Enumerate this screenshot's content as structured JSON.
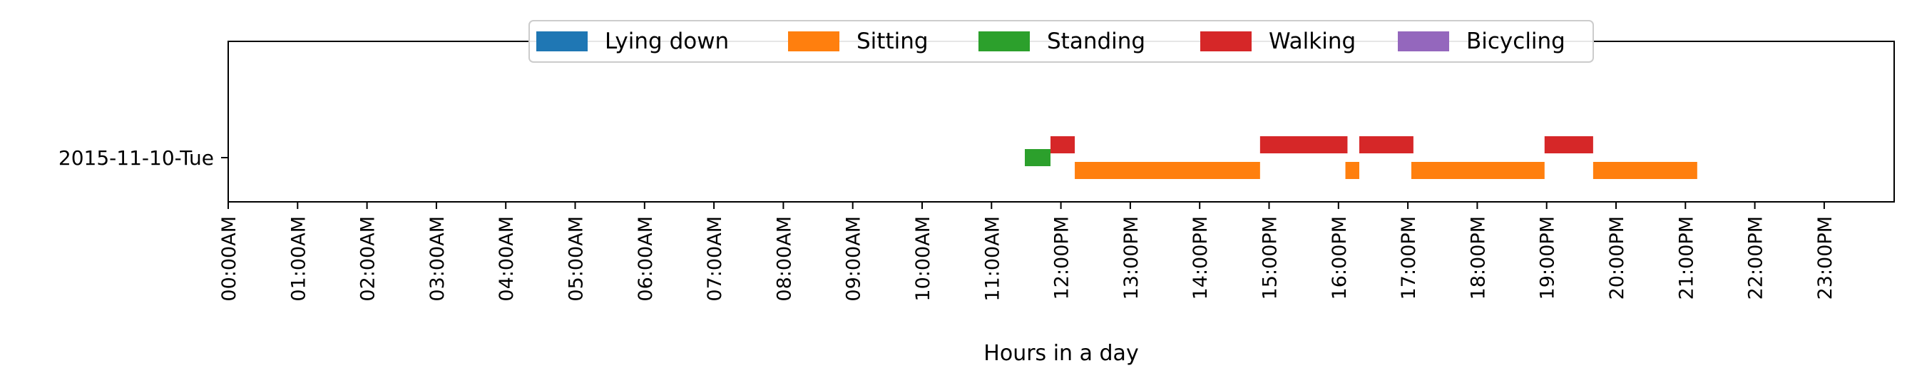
{
  "chart_data": {
    "type": "bar",
    "orientation": "horizontal-timeline",
    "title": "",
    "xlabel": "Hours in a day",
    "ylabel": "",
    "xlim": [
      0,
      24
    ],
    "x_ticks": [
      {
        "value": 0,
        "label": "00:00AM"
      },
      {
        "value": 1,
        "label": "01:00AM"
      },
      {
        "value": 2,
        "label": "02:00AM"
      },
      {
        "value": 3,
        "label": "03:00AM"
      },
      {
        "value": 4,
        "label": "04:00AM"
      },
      {
        "value": 5,
        "label": "05:00AM"
      },
      {
        "value": 6,
        "label": "06:00AM"
      },
      {
        "value": 7,
        "label": "07:00AM"
      },
      {
        "value": 8,
        "label": "08:00AM"
      },
      {
        "value": 9,
        "label": "09:00AM"
      },
      {
        "value": 10,
        "label": "10:00AM"
      },
      {
        "value": 11,
        "label": "11:00AM"
      },
      {
        "value": 12,
        "label": "12:00PM"
      },
      {
        "value": 13,
        "label": "13:00PM"
      },
      {
        "value": 14,
        "label": "14:00PM"
      },
      {
        "value": 15,
        "label": "15:00PM"
      },
      {
        "value": 16,
        "label": "16:00PM"
      },
      {
        "value": 17,
        "label": "17:00PM"
      },
      {
        "value": 18,
        "label": "18:00PM"
      },
      {
        "value": 19,
        "label": "19:00PM"
      },
      {
        "value": 20,
        "label": "20:00PM"
      },
      {
        "value": 21,
        "label": "21:00PM"
      },
      {
        "value": 22,
        "label": "22:00PM"
      },
      {
        "value": 23,
        "label": "23:00PM"
      }
    ],
    "categories": [
      "2015-11-10-Tue"
    ],
    "grid": false,
    "legend_position": "top-center",
    "series": [
      {
        "name": "Lying down",
        "color": "#1f77b4",
        "intervals": []
      },
      {
        "name": "Sitting",
        "color": "#ff7f0e",
        "intervals": [
          [
            12.2,
            14.87
          ],
          [
            16.1,
            16.3
          ],
          [
            17.05,
            18.97
          ],
          [
            19.67,
            21.17
          ]
        ]
      },
      {
        "name": "Standing",
        "color": "#2ca02c",
        "intervals": [
          [
            11.48,
            11.85
          ]
        ]
      },
      {
        "name": "Walking",
        "color": "#d62728",
        "intervals": [
          [
            11.85,
            12.2
          ],
          [
            14.87,
            16.13
          ],
          [
            16.3,
            17.08
          ],
          [
            18.97,
            19.67
          ]
        ]
      },
      {
        "name": "Bicycling",
        "color": "#9467bd",
        "intervals": []
      }
    ]
  }
}
